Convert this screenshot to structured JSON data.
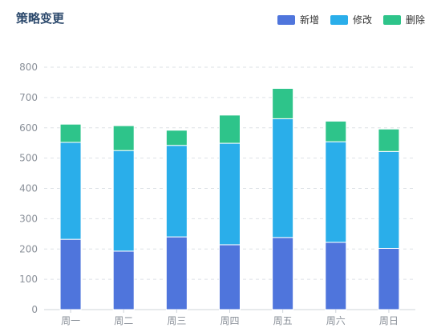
{
  "title": "策略变更",
  "colors": {
    "新增": "#4f75dc",
    "修改": "#2aaeea",
    "删除": "#2ec48a"
  },
  "chart_data": {
    "type": "bar",
    "stacked": true,
    "categories": [
      "周一",
      "周二",
      "周三",
      "周四",
      "周五",
      "周六",
      "周日"
    ],
    "series": [
      {
        "name": "新增",
        "values": [
          232,
          193,
          240,
          214,
          238,
          222,
          202
        ]
      },
      {
        "name": "修改",
        "values": [
          320,
          332,
          302,
          335,
          392,
          332,
          320
        ]
      },
      {
        "name": "删除",
        "values": [
          60,
          82,
          50,
          93,
          100,
          68,
          74
        ]
      }
    ],
    "yticks": [
      0,
      100,
      200,
      300,
      400,
      500,
      600,
      700,
      800
    ],
    "ylim": [
      0,
      800
    ],
    "grid": true,
    "legend_position": "top-right"
  }
}
